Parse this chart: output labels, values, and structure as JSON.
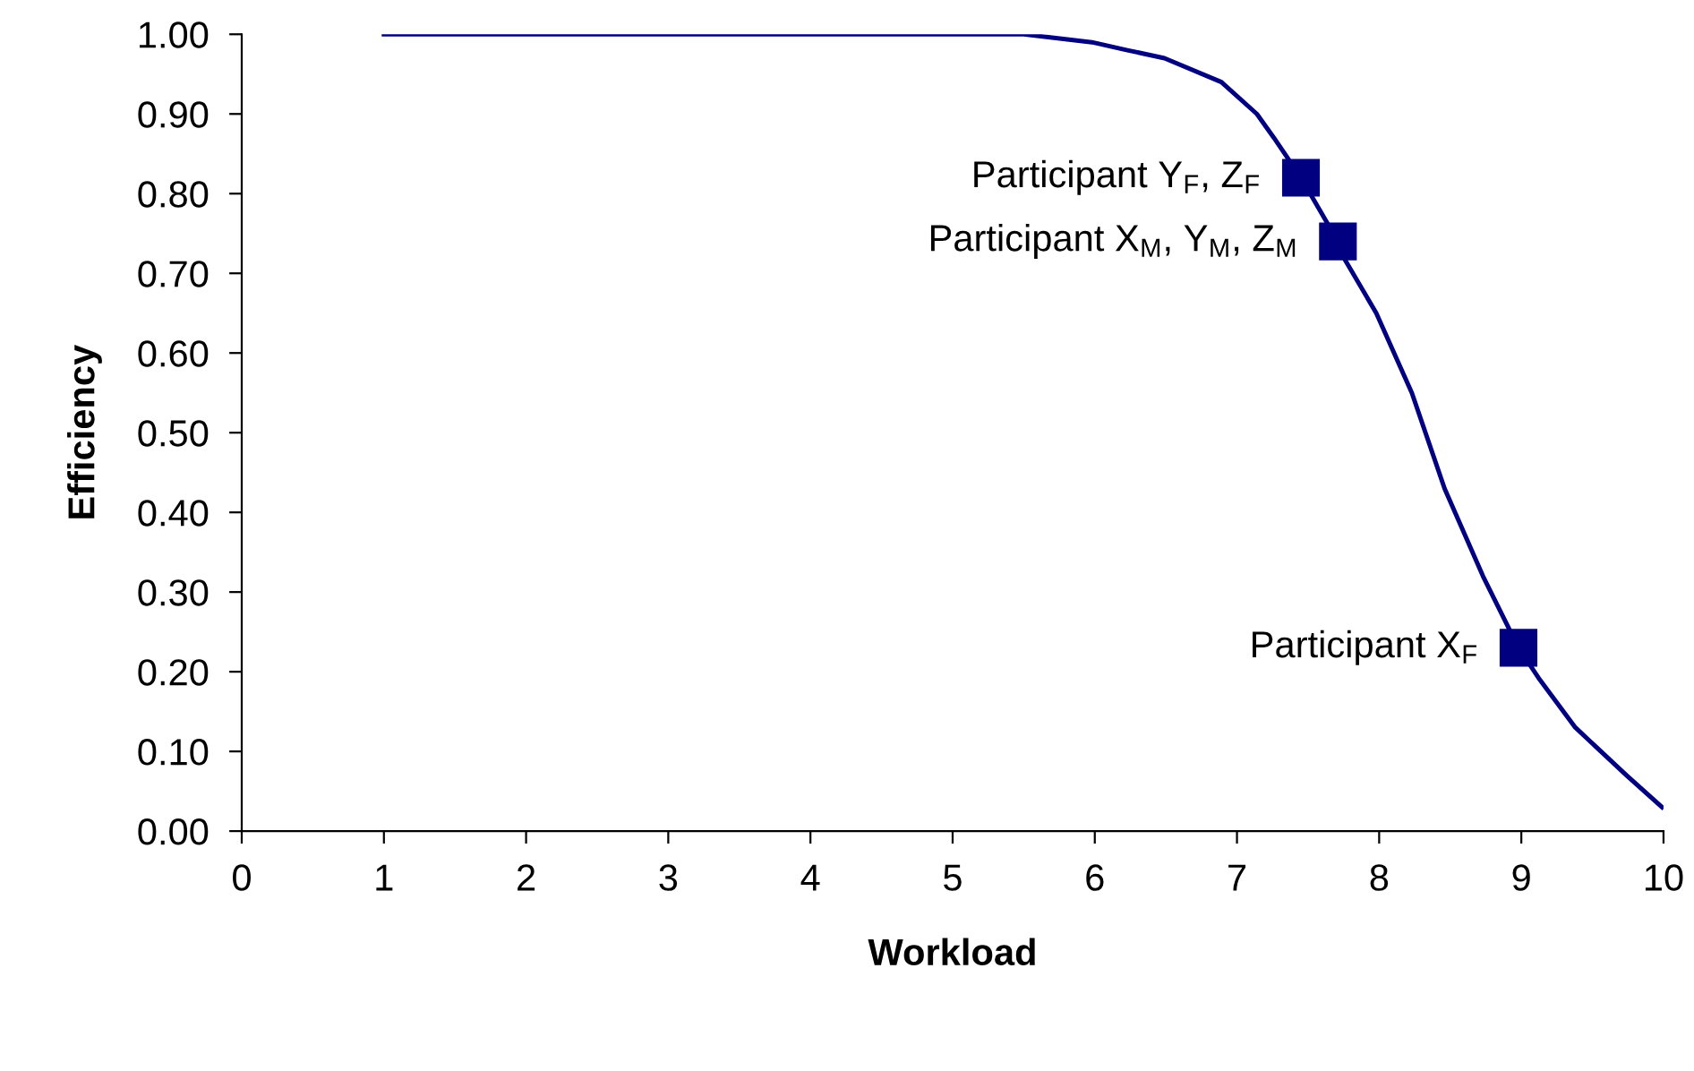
{
  "chart_data": {
    "type": "line",
    "xlabel": "Workload",
    "ylabel": "Efficiency",
    "series": [
      {
        "color": "#000080",
        "marker": "none",
        "x": [
          1,
          5.5,
          5.98,
          6.23,
          6.49,
          6.89,
          7.14,
          7.26,
          7.45,
          7.71,
          7.75,
          7.98,
          8.23,
          8.46,
          8.73,
          8.98,
          9.13,
          9.38,
          9.74,
          9.99
        ],
        "values": [
          1.0,
          1.0,
          0.99,
          0.98,
          0.97,
          0.94,
          0.9,
          0.87,
          0.82,
          0.74,
          0.72,
          0.65,
          0.55,
          0.43,
          0.32,
          0.23,
          0.19,
          0.13,
          0.07,
          0.03
        ]
      },
      {
        "type": "scatter",
        "color": "#000080",
        "marker": "square",
        "x": [
          7.45,
          7.71,
          8.98
        ],
        "values": [
          0.82,
          0.74,
          0.23
        ]
      }
    ],
    "annotations": [
      {
        "text": "Participant Y$_{F}$, Z$_{F}$",
        "x": 7.45,
        "y": 0.82
      },
      {
        "text": "Participant X$_{M}$, Y$_{M}$, Z$_{M}$",
        "x": 7.71,
        "y": 0.74
      },
      {
        "text": "Participant X$_{F}$",
        "x": 8.98,
        "y": 0.23
      }
    ],
    "xlim": [
      0,
      10
    ],
    "xticks": [
      0,
      1,
      2,
      3,
      4,
      5,
      6,
      7,
      8,
      9,
      10
    ],
    "ylim": [
      0,
      1
    ],
    "yticks": [
      {
        "value": 0,
        "label": "0.00"
      },
      {
        "value": 0.1,
        "label": "0.10"
      },
      {
        "value": 0.2,
        "label": "0.20"
      },
      {
        "value": 0.3,
        "label": "0.30"
      },
      {
        "value": 0.4,
        "label": "0.40"
      },
      {
        "value": 0.5,
        "label": "0.50"
      },
      {
        "value": 0.6,
        "label": "0.60"
      },
      {
        "value": 0.7,
        "label": "0.70"
      },
      {
        "value": 0.8,
        "label": "0.80"
      },
      {
        "value": 0.9,
        "label": "0.90"
      },
      {
        "value": 1.0,
        "label": "1.00"
      }
    ],
    "grid": false,
    "legend": false
  }
}
